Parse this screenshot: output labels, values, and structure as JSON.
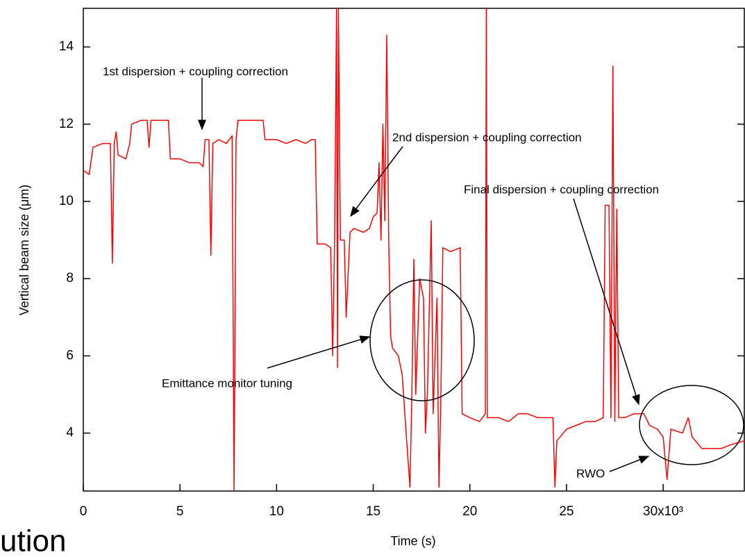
{
  "chart_data": {
    "type": "line",
    "xlabel": "Time (s)",
    "ylabel": "Vertical beam size (μm)",
    "color": "#ff0000",
    "xlim": [
      0,
      34.2
    ],
    "ylim": [
      2.5,
      15
    ],
    "xticks": [
      0,
      5,
      10,
      15,
      20,
      25,
      {
        "value": 30,
        "label": "30x10³"
      }
    ],
    "yticks": [
      4,
      6,
      8,
      10,
      12,
      14
    ],
    "annotations": [
      "1st dispersion + coupling correction",
      "2nd dispersion + coupling correction",
      "Final dispersion + coupling correction",
      "Emittance monitor tuning",
      "RWO"
    ],
    "footer_text": "ution",
    "x": [
      0,
      0.3,
      0.5,
      1.0,
      1.4,
      1.5,
      1.6,
      1.7,
      1.8,
      2.2,
      2.4,
      2.5,
      3.0,
      3.3,
      3.4,
      3.5,
      4.0,
      4.4,
      4.5,
      5.0,
      5.5,
      6.0,
      6.2,
      6.3,
      6.5,
      6.6,
      6.7,
      7.0,
      7.4,
      7.7,
      7.8,
      7.9,
      8.0,
      9.0,
      9.3,
      9.4,
      10.0,
      10.5,
      11.0,
      11.5,
      11.8,
      12.0,
      12.1,
      12.5,
      12.8,
      12.9,
      13.0,
      13.1,
      13.15,
      13.2,
      13.3,
      13.5,
      13.6,
      13.8,
      14.0,
      14.5,
      14.8,
      15.0,
      15.2,
      15.3,
      15.4,
      15.5,
      15.6,
      15.7,
      15.8,
      15.9,
      16.0,
      16.3,
      16.5,
      16.7,
      16.9,
      17.0,
      17.1,
      17.2,
      17.4,
      17.6,
      17.7,
      17.8,
      18.0,
      18.1,
      18.3,
      18.4,
      18.5,
      18.6,
      19.0,
      19.5,
      19.6,
      20.0,
      20.5,
      20.8,
      20.85,
      20.9,
      21.5,
      22.0,
      22.5,
      23.0,
      23.5,
      24.0,
      24.3,
      24.4,
      24.5,
      25.0,
      25.5,
      26.0,
      26.5,
      26.9,
      27.0,
      27.2,
      27.3,
      27.4,
      27.5,
      27.6,
      27.7,
      28.0,
      28.5,
      29.0,
      29.3,
      29.7,
      30.0,
      30.2,
      30.4,
      31.0,
      31.3,
      31.5,
      32.0,
      33.0,
      33.5,
      34.2
    ],
    "values": [
      10.8,
      10.7,
      11.4,
      11.5,
      11.5,
      8.4,
      11.5,
      11.8,
      11.2,
      11.1,
      11.5,
      12.0,
      12.1,
      12.1,
      11.4,
      12.1,
      12.1,
      12.1,
      11.1,
      11.1,
      11.0,
      11.0,
      10.9,
      11.6,
      11.6,
      8.6,
      11.5,
      11.6,
      11.5,
      11.7,
      2.5,
      11.6,
      12.1,
      12.1,
      12.1,
      11.6,
      11.6,
      11.5,
      11.6,
      11.5,
      11.6,
      11.6,
      8.9,
      8.9,
      8.8,
      6.0,
      9.0,
      15,
      5.7,
      15,
      9.0,
      9.0,
      7.0,
      9.2,
      9.3,
      9.2,
      9.3,
      9.6,
      9.7,
      11.0,
      9.0,
      12.0,
      9.5,
      14.3,
      9.0,
      6.5,
      6.2,
      6.0,
      5.5,
      4.0,
      2.6,
      5.0,
      8.5,
      5.0,
      8.0,
      7.5,
      4.0,
      5.0,
      9.5,
      4.5,
      7.5,
      2.6,
      5.0,
      8.8,
      8.7,
      8.8,
      4.5,
      4.4,
      4.3,
      4.5,
      15,
      4.4,
      4.4,
      4.3,
      4.5,
      4.5,
      4.4,
      4.4,
      4.4,
      2.6,
      3.8,
      4.1,
      4.2,
      4.3,
      4.3,
      4.4,
      9.9,
      9.9,
      4.4,
      13.5,
      4.3,
      9.8,
      4.4,
      4.4,
      4.5,
      4.5,
      4.2,
      4.1,
      3.9,
      2.8,
      4.1,
      4.0,
      4.4,
      3.9,
      3.6,
      3.6,
      3.7,
      3.8
    ]
  }
}
